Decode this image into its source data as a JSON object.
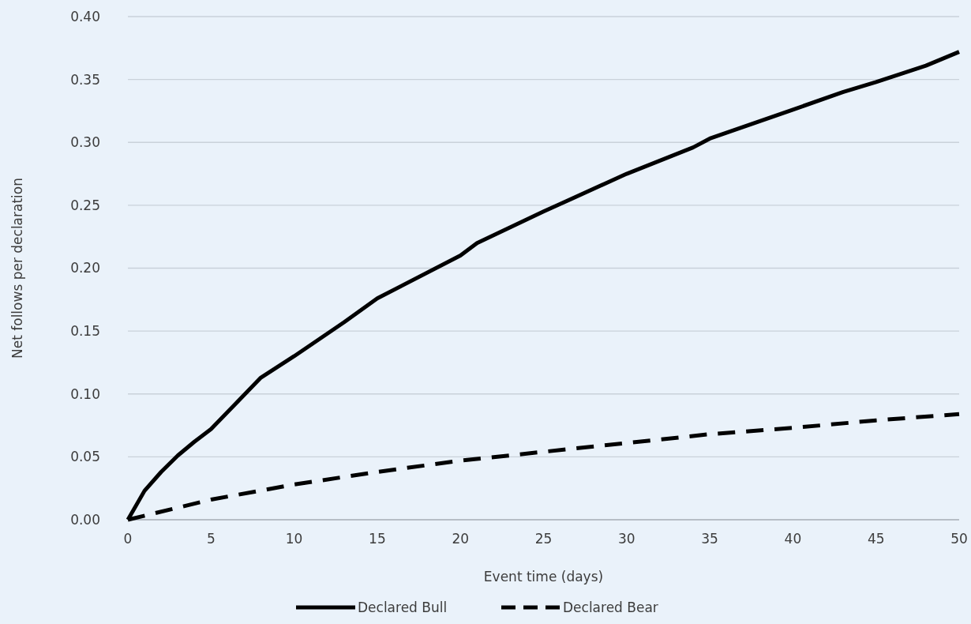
{
  "chart_data": {
    "type": "line",
    "xlabel": "Event time (days)",
    "ylabel": "Net follows per declaration",
    "xlim": [
      0,
      50
    ],
    "xticks": [
      0,
      5,
      10,
      15,
      20,
      25,
      30,
      35,
      40,
      45,
      50
    ],
    "ylim": [
      0,
      0.4
    ],
    "yticks": [
      {
        "value": 0,
        "label": "0.00"
      },
      {
        "value": 0.05,
        "label": "0.05"
      },
      {
        "value": 0.1,
        "label": "0.10"
      },
      {
        "value": 0.15,
        "label": "0.15"
      },
      {
        "value": 0.2,
        "label": "0.20"
      },
      {
        "value": 0.25,
        "label": "0.25"
      },
      {
        "value": 0.3,
        "label": "0.30"
      },
      {
        "value": 0.35,
        "label": "0.35"
      },
      {
        "value": 0.4,
        "label": "0.40"
      }
    ],
    "grid": "y",
    "legend": "bottom",
    "marker": "none",
    "series": [
      {
        "name": "Declared Bull",
        "color": "#000000",
        "line_style": "solid",
        "x": [
          0,
          1,
          2,
          3,
          4,
          5,
          8,
          10,
          13,
          15,
          20,
          21,
          25,
          26,
          30,
          34,
          35,
          40,
          43,
          45,
          48,
          50
        ],
        "values": [
          0,
          0.023,
          0.038,
          0.051,
          0.062,
          0.072,
          0.113,
          0.13,
          0.157,
          0.176,
          0.21,
          0.22,
          0.245,
          0.251,
          0.275,
          0.296,
          0.303,
          0.326,
          0.34,
          0.348,
          0.361,
          0.372
        ]
      },
      {
        "name": "Declared Bear",
        "color": "#000000",
        "line_style": "dashed",
        "x": [
          0,
          5,
          10,
          15,
          20,
          25,
          30,
          35,
          40,
          45,
          50
        ],
        "values": [
          0,
          0.016,
          0.028,
          0.038,
          0.047,
          0.054,
          0.061,
          0.068,
          0.073,
          0.079,
          0.084
        ]
      }
    ]
  }
}
